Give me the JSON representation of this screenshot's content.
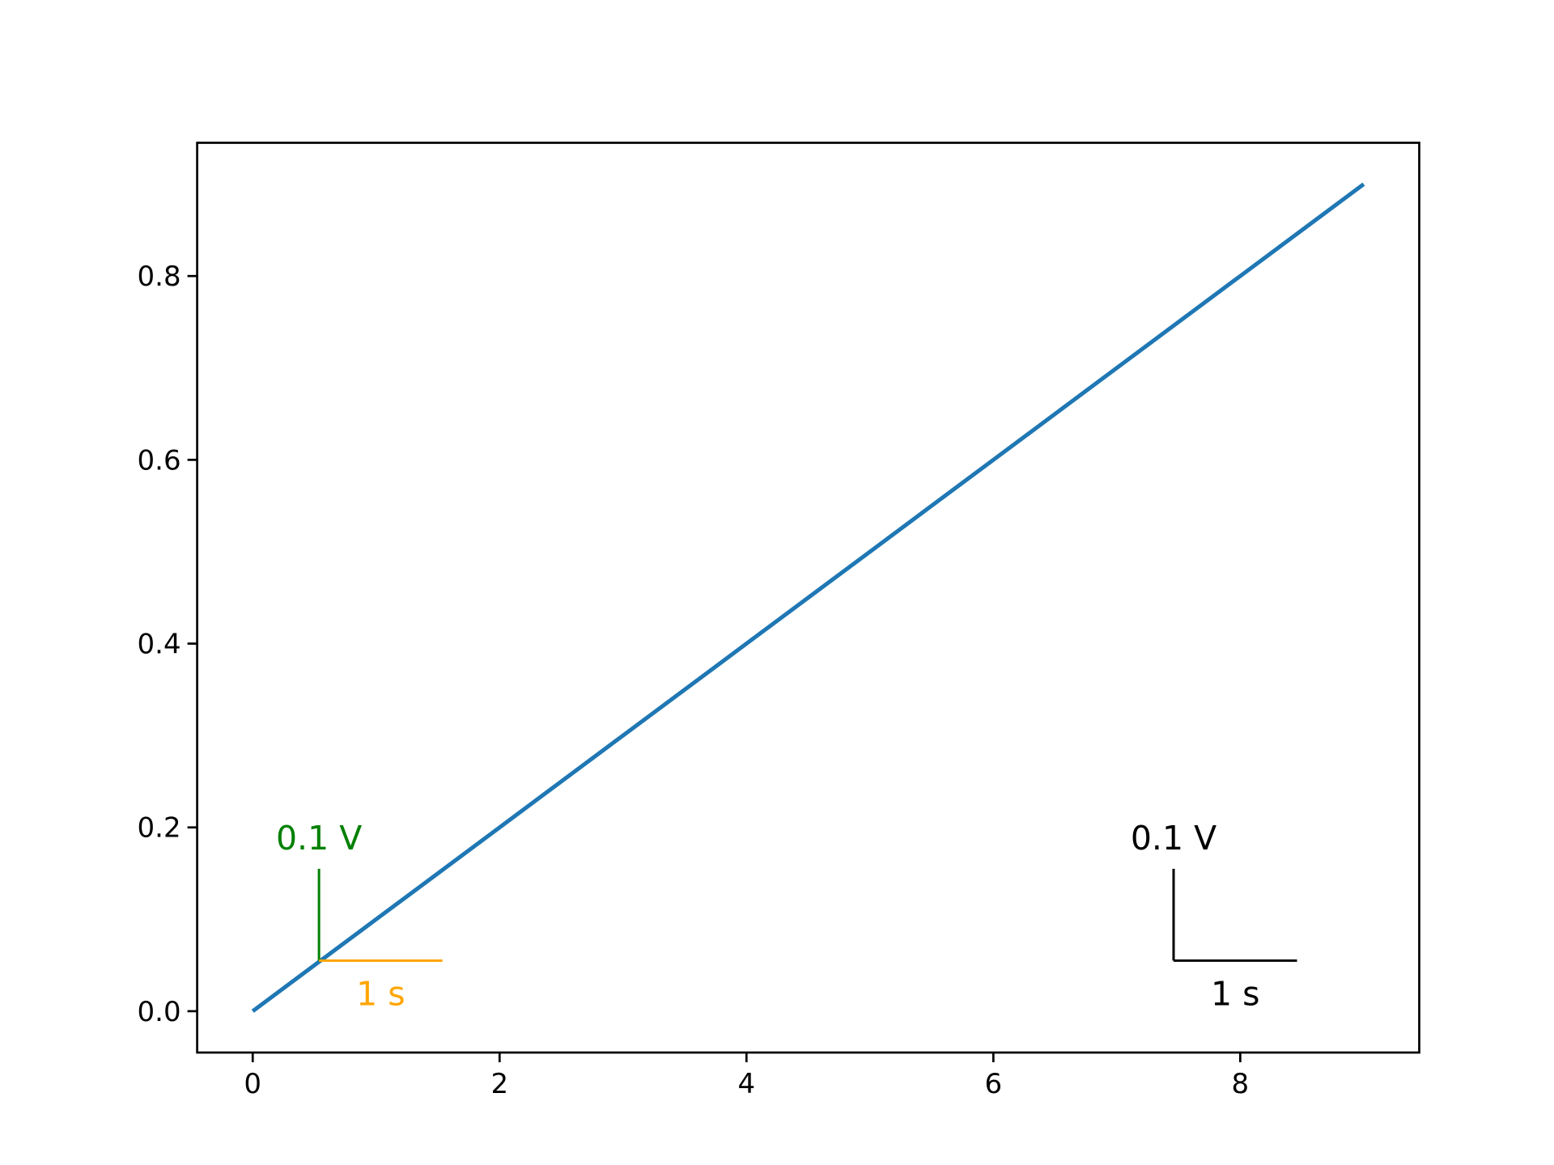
{
  "chart_data": {
    "type": "line",
    "x": [
      0,
      1,
      2,
      3,
      4,
      5,
      6,
      7,
      8,
      9
    ],
    "series": [
      {
        "color": "#1f77b4",
        "values": [
          0.0,
          0.1,
          0.2,
          0.3,
          0.4,
          0.5,
          0.6,
          0.7,
          0.8,
          0.9
        ]
      }
    ],
    "xlim": [
      -0.45,
      9.45
    ],
    "xticks": [
      0,
      2,
      4,
      6,
      8
    ],
    "ylim": [
      -0.045,
      0.945
    ],
    "yticks": [
      {
        "value": 0,
        "label": "0.0"
      },
      0.2,
      0.4,
      0.6,
      0.8
    ],
    "scale_bars": [
      {
        "x": 0.537,
        "y": 0.055,
        "width": 1,
        "height": 0.1,
        "xlabel": "1 s",
        "ylabel": "0.1 V",
        "xcolor": "orange",
        "ycolor": "green"
      },
      {
        "x": 7.46,
        "y": 0.055,
        "width": 1,
        "height": 0.1,
        "xlabel": "1 s",
        "ylabel": "0.1 V",
        "xcolor": "black",
        "ycolor": "black"
      }
    ]
  }
}
